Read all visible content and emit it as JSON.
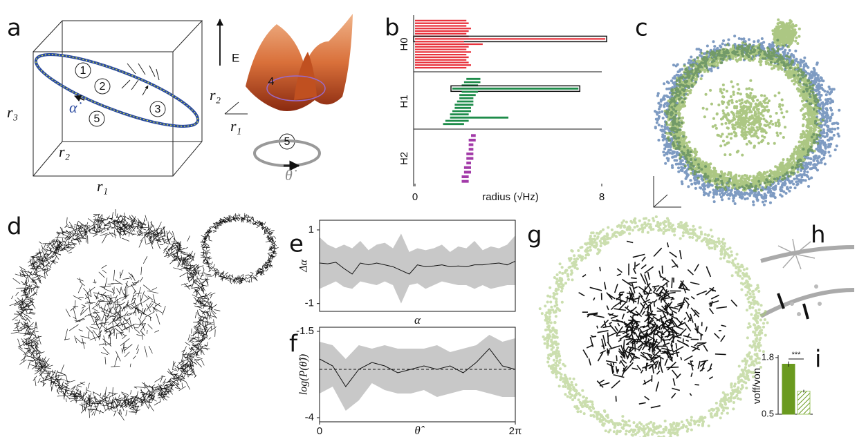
{
  "panel_labels": [
    "a",
    "b",
    "c",
    "d",
    "e",
    "f",
    "g",
    "h",
    "i"
  ],
  "panel_a": {
    "cube_labels": [
      "r₃",
      "r₂",
      "r₁"
    ],
    "steps": [
      "1",
      "2",
      "3",
      "4",
      "5",
      "5"
    ],
    "alpha_dot": "α̇",
    "energy": "E",
    "plane_labels": [
      "r₂",
      "r₁"
    ],
    "theta_dot": "θ̇"
  },
  "chart_data": [
    {
      "type": "barcode",
      "xlabel": "radius (√Hz)",
      "xlim": [
        0,
        8
      ],
      "xticks": [
        0,
        8
      ],
      "series": [
        {
          "name": "H0",
          "color": "#e8323c",
          "values": [
            [
              0,
              2.2
            ],
            [
              0,
              2.3
            ],
            [
              0,
              2.2
            ],
            [
              0,
              2.4
            ],
            [
              0,
              2.3
            ],
            [
              0,
              2.2
            ],
            [
              0,
              2.3
            ],
            [
              0,
              8.15
            ],
            [
              0,
              2.1
            ],
            [
              0,
              2.9
            ],
            [
              0,
              2.3
            ],
            [
              0,
              2.2
            ],
            [
              0,
              2.4
            ],
            [
              0,
              2.2
            ],
            [
              0,
              2.3
            ],
            [
              0,
              2.2
            ],
            [
              0,
              2.3
            ],
            [
              0,
              2.4
            ],
            [
              0,
              2.2
            ]
          ]
        },
        {
          "name": "H1",
          "color": "#1e8c4a",
          "values": [
            [
              2.2,
              2.8
            ],
            [
              2.1,
              2.8
            ],
            [
              2.0,
              2.7
            ],
            [
              1.6,
              7.0
            ],
            [
              2.0,
              2.7
            ],
            [
              1.9,
              2.6
            ],
            [
              1.9,
              2.5
            ],
            [
              1.8,
              2.5
            ],
            [
              1.7,
              2.5
            ],
            [
              1.7,
              2.4
            ],
            [
              1.6,
              2.4
            ],
            [
              1.5,
              2.3
            ],
            [
              1.5,
              4.0
            ],
            [
              1.3,
              2.3
            ],
            [
              1.2,
              2.1
            ]
          ]
        },
        {
          "name": "H2",
          "color": "#a23aa8",
          "values": [
            [
              2.4,
              2.6
            ],
            [
              2.3,
              2.6
            ],
            [
              2.3,
              2.5
            ],
            [
              2.3,
              2.5
            ],
            [
              2.2,
              2.5
            ],
            [
              2.2,
              2.5
            ],
            [
              2.2,
              2.4
            ],
            [
              2.1,
              2.4
            ],
            [
              2.1,
              2.4
            ],
            [
              2.0,
              2.3
            ],
            [
              2.0,
              2.3
            ]
          ]
        }
      ]
    },
    {
      "type": "line",
      "ylabel": "Δα",
      "xlabel": "α",
      "ylim": [
        -1.1,
        1.15
      ],
      "yticks": [
        -1,
        1
      ],
      "values": [
        0.1,
        0.08,
        0.12,
        -0.05,
        -0.2,
        0.1,
        0.05,
        0.1,
        0.05,
        0.0,
        -0.1,
        -0.2,
        0.05,
        0.0,
        0.02,
        0.05,
        0.0,
        0.02,
        0.0,
        0.05,
        0.05,
        0.08,
        0.1,
        0.05,
        0.15
      ],
      "band_upper": [
        0.8,
        0.6,
        0.5,
        0.6,
        0.5,
        0.7,
        0.45,
        0.6,
        0.65,
        0.5,
        0.9,
        0.4,
        0.5,
        0.45,
        0.5,
        0.6,
        0.4,
        0.55,
        0.5,
        0.7,
        0.45,
        0.55,
        0.5,
        0.6,
        0.85
      ],
      "band_lower": [
        -0.6,
        -0.5,
        -0.4,
        -0.55,
        -0.6,
        -0.4,
        -0.45,
        -0.5,
        -0.4,
        -0.5,
        -1.0,
        -0.5,
        -0.45,
        -0.6,
        -0.5,
        -0.4,
        -0.45,
        -0.5,
        -0.5,
        -0.6,
        -0.5,
        -0.6,
        -0.55,
        -0.5,
        -0.5
      ]
    },
    {
      "type": "line",
      "ylabel": "log(P(θ̂))",
      "xlabel": "θ̂",
      "xlim": [
        0,
        6.283
      ],
      "xticks": [
        0,
        {
          "value": 6.283,
          "label": "2π"
        }
      ],
      "ylim": [
        -4,
        -1.5
      ],
      "yticks": [
        -4,
        -1.5
      ],
      "reference": -2.6,
      "x": [
        0,
        0.42,
        0.84,
        1.26,
        1.68,
        2.09,
        2.51,
        2.93,
        3.35,
        3.77,
        4.19,
        4.61,
        5.03,
        5.45,
        5.87,
        6.28
      ],
      "values": [
        -2.3,
        -2.5,
        -3.1,
        -2.6,
        -2.4,
        -2.5,
        -2.7,
        -2.6,
        -2.5,
        -2.6,
        -2.5,
        -2.7,
        -2.4,
        -2.0,
        -2.5,
        -2.6
      ],
      "band_upper": [
        -1.8,
        -1.9,
        -2.3,
        -1.9,
        -2.0,
        -1.9,
        -2.0,
        -2.0,
        -2.0,
        -1.9,
        -2.1,
        -2.0,
        -1.9,
        -1.6,
        -1.8,
        -1.7
      ],
      "band_lower": [
        -3.3,
        -3.1,
        -3.8,
        -3.5,
        -3.0,
        -3.2,
        -3.3,
        -3.3,
        -3.2,
        -3.4,
        -3.3,
        -3.2,
        -3.2,
        -3.3,
        -3.4,
        -3.4
      ]
    },
    {
      "type": "bar",
      "ylabel": "voff/von",
      "ylim": [
        0.5,
        1.8
      ],
      "yticks": [
        0.5,
        1.8
      ],
      "categories": [
        null,
        null
      ],
      "values": [
        1.65,
        1.03
      ],
      "errors": [
        0.06,
        0.03
      ],
      "colors": [
        "#6a9a1f",
        "#9cc462"
      ],
      "annotation": "***"
    }
  ]
}
